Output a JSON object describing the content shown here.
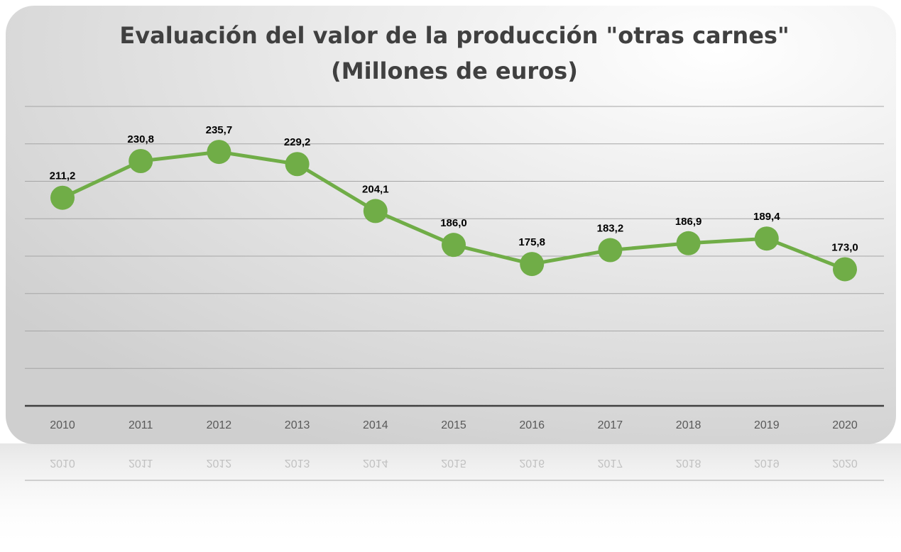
{
  "chart_data": {
    "type": "line",
    "title": [
      "Evaluación del valor  de la producción \"otras carnes\"",
      "(Millones de euros)"
    ],
    "categories": [
      "2010",
      "2011",
      "2012",
      "2013",
      "2014",
      "2015",
      "2016",
      "2017",
      "2018",
      "2019",
      "2020"
    ],
    "series": [
      {
        "name": "otras carnes",
        "color": "#70ad47",
        "values": [
          211.2,
          230.8,
          235.7,
          229.2,
          204.1,
          186.0,
          175.8,
          183.2,
          186.9,
          189.4,
          173.0
        ],
        "value_labels": [
          "211,2",
          "230,8",
          "235,7",
          "229,2",
          "204,1",
          "186,0",
          "175,8",
          "183,2",
          "186,9",
          "189,4",
          "173,0"
        ]
      }
    ],
    "ylim": [
      100,
      260
    ],
    "yticks": [
      100,
      120,
      140,
      160,
      180,
      200,
      220,
      240,
      260
    ],
    "grid": true
  }
}
